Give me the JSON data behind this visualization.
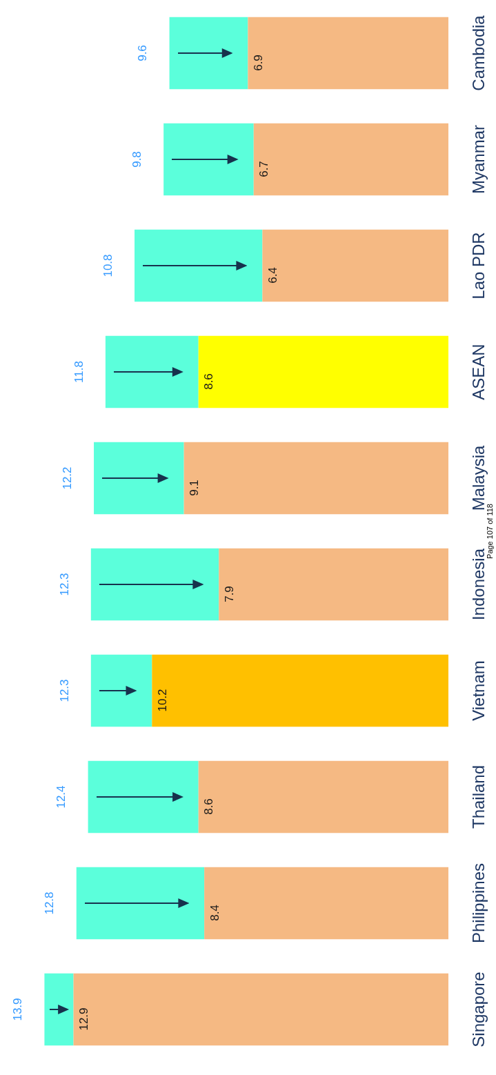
{
  "chart_data": {
    "type": "bar",
    "orientation": "horizontal",
    "stacked": true,
    "legend": false,
    "totals": [
      "9.6",
      "9.8",
      "10.8",
      "11.8",
      "12.2",
      "12.3",
      "12.3",
      "12.4",
      "12.8",
      "13.9"
    ],
    "categories": [
      "Cambodia",
      "Myanmar",
      "Lao PDR",
      "ASEAN",
      "Malaysia",
      "Indonesia",
      "Vietnam",
      "Thailand",
      "Philippines",
      "Singapore"
    ],
    "series": [
      {
        "colors": [
          "#f5b983",
          "#f5b983",
          "#f5b983",
          "#ffff00",
          "#f5b983",
          "#f5b983",
          "#ffc000",
          "#f5b983",
          "#f5b983",
          "#f5b983"
        ],
        "values": [
          6.9,
          6.7,
          6.4,
          8.6,
          9.1,
          7.9,
          10.2,
          8.6,
          8.4,
          12.9
        ],
        "value_labels": [
          "6.9",
          "6.7",
          "6.4",
          "8.6",
          "9.1",
          "7.9",
          "10.2",
          "8.6",
          "8.4",
          "12.9"
        ]
      },
      {
        "color": "#5bffdb",
        "values": [
          2.7,
          3.1,
          4.4,
          3.2,
          3.1,
          4.4,
          2.1,
          3.8,
          4.4,
          1.0
        ]
      }
    ],
    "annotations": [
      "Page 107 of 118"
    ]
  }
}
